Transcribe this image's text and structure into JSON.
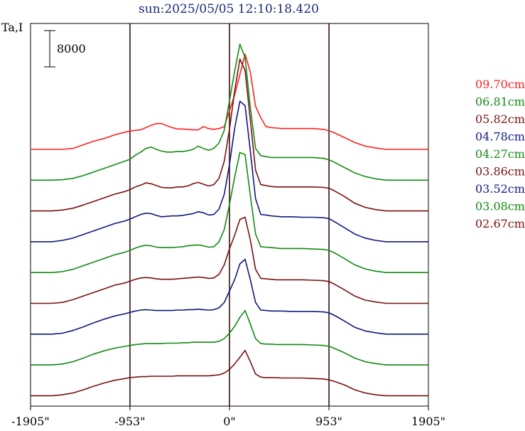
{
  "chart_data": {
    "type": "line",
    "title": "sun:2025/05/05 12:10:18.420",
    "ylabel": "Ta,I",
    "scale_bar_label": "8000",
    "xlabel": "",
    "x_ticks": [
      "-1905\"",
      "-953\"",
      "0\"",
      "953\"",
      "1905\""
    ],
    "x_tick_values": [
      -1905,
      -953,
      0,
      953,
      1905
    ],
    "xlim": [
      -1905,
      1905
    ],
    "vertical_lines_at": [
      -953,
      0,
      953
    ],
    "grid": false,
    "legend_position": "right",
    "x": [
      -1905,
      -1800,
      -1700,
      -1600,
      -1500,
      -1400,
      -1300,
      -1200,
      -1100,
      -1000,
      -953,
      -900,
      -850,
      -800,
      -750,
      -700,
      -650,
      -600,
      -550,
      -500,
      -450,
      -400,
      -350,
      -300,
      -250,
      -200,
      -150,
      -100,
      -50,
      0,
      50,
      100,
      150,
      200,
      250,
      300,
      350,
      400,
      450,
      500,
      600,
      700,
      800,
      900,
      953,
      1000,
      1100,
      1200,
      1300,
      1400,
      1500,
      1600,
      1700,
      1800,
      1905
    ],
    "series": [
      {
        "name": "09.70cm",
        "color": "#ff2020",
        "baseline": 0,
        "values": [
          0,
          0,
          0,
          0,
          200,
          1000,
          1800,
          2400,
          3200,
          3800,
          4000,
          4200,
          4300,
          4800,
          5300,
          5700,
          5700,
          5200,
          4800,
          4500,
          4500,
          4400,
          4300,
          4300,
          5000,
          4600,
          4400,
          4600,
          5000,
          8500,
          12000,
          16500,
          21000,
          17000,
          9500,
          7000,
          5000,
          4800,
          4700,
          4600,
          4600,
          4600,
          4600,
          4400,
          4100,
          3700,
          2600,
          1500,
          700,
          300,
          0,
          0,
          0,
          0,
          0
        ]
      },
      {
        "name": "06.81cm",
        "color": "#108c10",
        "baseline": 0,
        "values": [
          0,
          0,
          0,
          100,
          400,
          1000,
          1800,
          2600,
          3400,
          4200,
          4600,
          5500,
          6200,
          7000,
          7300,
          6800,
          6400,
          6200,
          6200,
          6300,
          6300,
          6500,
          6800,
          7500,
          7000,
          6600,
          7000,
          8200,
          11000,
          17500,
          24000,
          30000,
          27000,
          16000,
          7000,
          5400,
          5200,
          5000,
          5000,
          5000,
          5000,
          5000,
          5000,
          4800,
          4500,
          4000,
          2800,
          1600,
          800,
          300,
          0,
          0,
          0,
          0,
          0
        ]
      },
      {
        "name": "05.82cm",
        "color": "#7a1010",
        "baseline": 0,
        "values": [
          0,
          0,
          0,
          200,
          600,
          1300,
          2100,
          2900,
          3700,
          4300,
          4700,
          5300,
          5700,
          6200,
          6000,
          5600,
          5200,
          5100,
          5100,
          5300,
          5300,
          5500,
          6000,
          6300,
          5900,
          5500,
          5800,
          7200,
          11000,
          18000,
          26500,
          33500,
          31000,
          20000,
          9000,
          5800,
          5600,
          5400,
          5300,
          5300,
          5300,
          5300,
          5300,
          5200,
          5000,
          4500,
          3200,
          1700,
          800,
          300,
          0,
          0,
          0,
          0,
          0
        ]
      },
      {
        "name": "04.78cm",
        "color": "#101880",
        "baseline": 0,
        "values": [
          0,
          0,
          0,
          300,
          800,
          1600,
          2400,
          3200,
          4000,
          4600,
          5000,
          5500,
          6000,
          6300,
          6200,
          5800,
          5500,
          5600,
          5700,
          5700,
          5800,
          6000,
          6200,
          6600,
          6400,
          5900,
          6000,
          7200,
          10500,
          17000,
          25000,
          31000,
          30000,
          20000,
          9500,
          6000,
          5900,
          5700,
          5600,
          5500,
          5500,
          5400,
          5400,
          5300,
          5100,
          4500,
          3100,
          1700,
          800,
          300,
          0,
          0,
          0,
          0,
          0
        ]
      },
      {
        "name": "04.27cm",
        "color": "#108c10",
        "baseline": 0,
        "values": [
          0,
          0,
          0,
          200,
          700,
          1500,
          2300,
          3100,
          3900,
          4500,
          4900,
          5400,
          5800,
          6000,
          5900,
          5600,
          5500,
          5500,
          5500,
          5600,
          5700,
          5900,
          6000,
          6100,
          5900,
          5600,
          5700,
          6800,
          9500,
          15000,
          21000,
          26500,
          26000,
          17000,
          8500,
          5700,
          5600,
          5500,
          5400,
          5300,
          5300,
          5300,
          5200,
          5100,
          4900,
          4400,
          3100,
          1700,
          800,
          300,
          0,
          0,
          0,
          0,
          0
        ]
      },
      {
        "name": "03.86cm",
        "color": "#7a1010",
        "baseline": 0,
        "values": [
          0,
          0,
          0,
          200,
          800,
          1600,
          2400,
          3200,
          4000,
          4500,
          4900,
          5300,
          5600,
          5700,
          5600,
          5400,
          5300,
          5300,
          5300,
          5400,
          5500,
          5600,
          5700,
          5800,
          5700,
          5500,
          5600,
          6400,
          8500,
          12000,
          15000,
          18500,
          19000,
          14000,
          7500,
          5500,
          5400,
          5300,
          5200,
          5200,
          5200,
          5200,
          5100,
          5000,
          4800,
          4300,
          3000,
          1600,
          700,
          300,
          0,
          0,
          0,
          0,
          0
        ]
      },
      {
        "name": "03.52cm",
        "color": "#101880",
        "baseline": 0,
        "values": [
          0,
          0,
          0,
          200,
          800,
          1600,
          2500,
          3300,
          4000,
          4500,
          4800,
          5100,
          5300,
          5400,
          5300,
          5200,
          5200,
          5200,
          5200,
          5300,
          5300,
          5400,
          5400,
          5500,
          5400,
          5300,
          5400,
          5800,
          7000,
          9500,
          12000,
          15500,
          16500,
          12000,
          7000,
          5300,
          5200,
          5100,
          5100,
          5100,
          5000,
          5000,
          5000,
          4900,
          4700,
          4200,
          2900,
          1500,
          700,
          300,
          0,
          0,
          0,
          0,
          0
        ]
      },
      {
        "name": "03.08cm",
        "color": "#108c10",
        "baseline": 0,
        "values": [
          0,
          0,
          0,
          200,
          700,
          1500,
          2400,
          3100,
          3700,
          4100,
          4300,
          4500,
          4600,
          4700,
          4700,
          4700,
          4700,
          4800,
          4800,
          4800,
          4900,
          4900,
          5000,
          5000,
          5000,
          5000,
          5000,
          5200,
          5800,
          7000,
          8500,
          10500,
          12000,
          9000,
          5800,
          4700,
          4600,
          4600,
          4500,
          4500,
          4500,
          4500,
          4400,
          4300,
          4100,
          3700,
          2700,
          1500,
          700,
          300,
          0,
          0,
          0,
          0,
          0
        ]
      },
      {
        "name": "02.67cm",
        "color": "#7a1010",
        "baseline": 0,
        "values": [
          0,
          0,
          0,
          200,
          600,
          1300,
          2100,
          2800,
          3400,
          3800,
          4000,
          4100,
          4200,
          4200,
          4300,
          4300,
          4300,
          4300,
          4300,
          4400,
          4400,
          4400,
          4400,
          4400,
          4400,
          4400,
          4500,
          4600,
          5000,
          5800,
          7000,
          8500,
          10000,
          7500,
          4800,
          4100,
          4000,
          4000,
          4000,
          3900,
          3900,
          3900,
          3800,
          3700,
          3500,
          3200,
          2400,
          1300,
          600,
          200,
          0,
          0,
          0,
          0,
          0
        ]
      }
    ]
  }
}
